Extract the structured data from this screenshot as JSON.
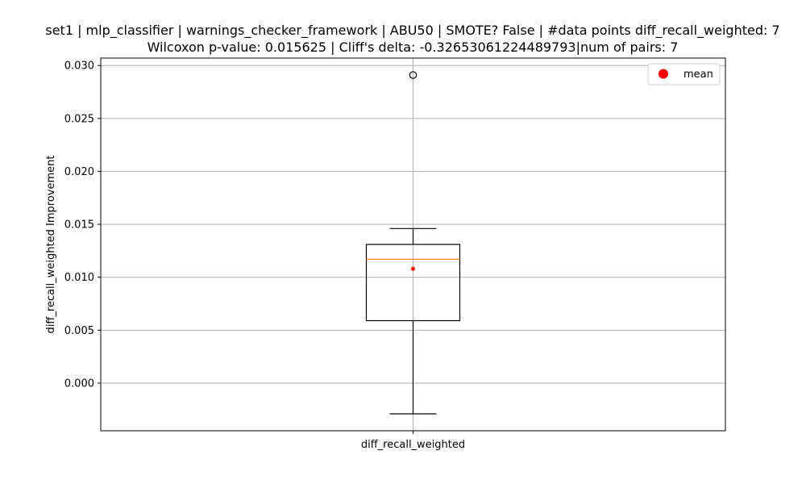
{
  "chart_data": {
    "type": "box",
    "title_line1": "set1 | mlp_classifier | warnings_checker_framework | ABU50 | SMOTE? False | #data points diff_recall_weighted: 7",
    "title_line2": "Wilcoxon p-value: 0.015625 | Cliff's delta: -0.32653061224489793|num of pairs: 7",
    "ylabel": "diff_recall_weighted Improvement",
    "categories": [
      "diff_recall_weighted"
    ],
    "ylim": [
      -0.0045,
      0.0307
    ],
    "yticks": [
      0.0,
      0.005,
      0.01,
      0.015,
      0.02,
      0.025,
      0.03
    ],
    "ytick_labels": [
      "0.000",
      "0.005",
      "0.010",
      "0.015",
      "0.020",
      "0.025",
      "0.030"
    ],
    "grid": true,
    "box": {
      "whisker_low": -0.0029,
      "q1": 0.0059,
      "median": 0.0117,
      "q3": 0.0131,
      "whisker_high": 0.0146,
      "mean": 0.0108,
      "outliers": [
        0.0291
      ]
    },
    "legend": {
      "position": "top-right",
      "entries": [
        "mean"
      ]
    },
    "colors": {
      "median": "#ff7f0e",
      "mean": "#ff0000",
      "grid": "#b0b0b0",
      "box": "#000000"
    }
  }
}
